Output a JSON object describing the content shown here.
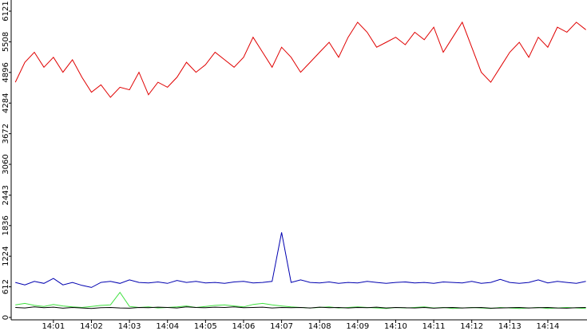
{
  "chart_data": {
    "type": "line",
    "x": [
      840,
      840.25,
      840.5,
      840.75,
      841,
      841.25,
      841.5,
      841.75,
      842,
      842.25,
      842.5,
      842.75,
      843,
      843.25,
      843.5,
      843.75,
      844,
      844.25,
      844.5,
      844.75,
      845,
      845.25,
      845.5,
      845.75,
      846,
      846.25,
      846.5,
      846.75,
      847,
      847.25,
      847.5,
      847.75,
      848,
      848.25,
      848.5,
      848.75,
      849,
      849.25,
      849.5,
      849.75,
      850,
      850.25,
      850.5,
      850.75,
      851,
      851.25,
      851.5,
      851.75,
      852,
      852.25,
      852.5,
      852.75,
      853,
      853.25,
      853.5,
      853.75,
      854,
      854.25,
      854.5,
      854.75,
      855
    ],
    "xlim": [
      839.89,
      855.03
    ],
    "xticks": [
      {
        "value": 841,
        "label": "14:01"
      },
      {
        "value": 842,
        "label": "14:02"
      },
      {
        "value": 843,
        "label": "14:03"
      },
      {
        "value": 844,
        "label": "14:04"
      },
      {
        "value": 845,
        "label": "14:05"
      },
      {
        "value": 846,
        "label": "14:06"
      },
      {
        "value": 847,
        "label": "14:07"
      },
      {
        "value": 848,
        "label": "14:08"
      },
      {
        "value": 849,
        "label": "14:09"
      },
      {
        "value": 850,
        "label": "14:10"
      },
      {
        "value": 851,
        "label": "14:11"
      },
      {
        "value": 852,
        "label": "14:12"
      },
      {
        "value": 853,
        "label": "14:13"
      },
      {
        "value": 854,
        "label": "14:14"
      }
    ],
    "ylim": [
      0,
      6121
    ],
    "yticks": [
      0,
      612,
      1224,
      1836,
      2443,
      3060,
      3672,
      4284,
      4896,
      5508,
      6121
    ],
    "series": [
      {
        "color": "#e00000",
        "values": [
          4700,
          5100,
          5300,
          5000,
          5200,
          4900,
          5150,
          4800,
          4500,
          4650,
          4400,
          4600,
          4550,
          4900,
          4450,
          4700,
          4600,
          4800,
          5100,
          4900,
          5050,
          5300,
          5150,
          5000,
          5200,
          5600,
          5300,
          5000,
          5400,
          5200,
          4900,
          5100,
          5300,
          5500,
          5200,
          5600,
          5900,
          5700,
          5400,
          5500,
          5600,
          5450,
          5700,
          5550,
          5800,
          5300,
          5600,
          5900,
          5400,
          4900,
          4700,
          5000,
          5300,
          5500,
          5200,
          5600,
          5400,
          5800,
          5700,
          5900,
          5750
        ]
      },
      {
        "color": "#0000b0",
        "values": [
          700,
          650,
          720,
          680,
          780,
          650,
          700,
          640,
          600,
          700,
          720,
          680,
          750,
          700,
          690,
          710,
          680,
          740,
          700,
          720,
          690,
          700,
          680,
          710,
          720,
          690,
          700,
          720,
          1700,
          700,
          750,
          700,
          690,
          710,
          680,
          700,
          690,
          720,
          700,
          680,
          700,
          710,
          690,
          700,
          680,
          710,
          700,
          690,
          720,
          680,
          700,
          760,
          700,
          680,
          700,
          750,
          690,
          720,
          700,
          680,
          720
        ]
      },
      {
        "color": "#40e040",
        "values": [
          250,
          280,
          240,
          220,
          260,
          230,
          210,
          200,
          220,
          240,
          250,
          500,
          220,
          200,
          210,
          190,
          200,
          210,
          230,
          200,
          220,
          240,
          250,
          230,
          210,
          260,
          280,
          250,
          230,
          210,
          200,
          190,
          200,
          210,
          190,
          200,
          210,
          200,
          190,
          180,
          200,
          190,
          200,
          210,
          190,
          200,
          180,
          190,
          200,
          190,
          180,
          200,
          190,
          180,
          190,
          200,
          180,
          190,
          200,
          190,
          180
        ]
      },
      {
        "color": "#000000",
        "values": [
          200,
          190,
          210,
          195,
          205,
          185,
          200,
          190,
          180,
          195,
          200,
          190,
          185,
          200,
          195,
          205,
          200,
          190,
          210,
          200,
          195,
          205,
          200,
          210,
          195,
          200,
          205,
          190,
          200,
          195,
          200,
          190,
          205,
          195,
          200,
          190,
          200,
          195,
          205,
          190,
          200,
          195,
          190,
          200,
          185,
          195,
          200,
          190,
          195,
          200,
          185,
          190,
          195,
          200,
          190,
          195,
          200,
          190,
          185,
          195,
          200
        ]
      }
    ]
  }
}
